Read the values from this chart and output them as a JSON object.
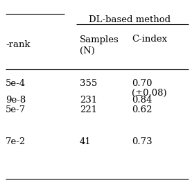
{
  "title_span": "DL-based method",
  "col1_header": "-rank",
  "col2_header": "Samples",
  "col2_header2": "(N)",
  "col3_header": "C-index",
  "rows": [
    {
      "col1": "5e-4",
      "col2": "355",
      "col3": "0.70",
      "col3b": "(±0.08)"
    },
    {
      "col1": "9e-8",
      "col2": "231",
      "col3": "0.84",
      "col3b": ""
    },
    {
      "col1": "5e-7",
      "col2": "221",
      "col3": "0.62",
      "col3b": ""
    },
    {
      "col1": "",
      "col2": "",
      "col3": "",
      "col3b": ""
    },
    {
      "col1": "7e-2",
      "col2": "41",
      "col3": "0.73",
      "col3b": ""
    }
  ],
  "bg_color": "#ffffff",
  "text_color": "#000000",
  "font_size": 9.5,
  "figsize": [
    2.77,
    2.77
  ],
  "dpi": 100
}
